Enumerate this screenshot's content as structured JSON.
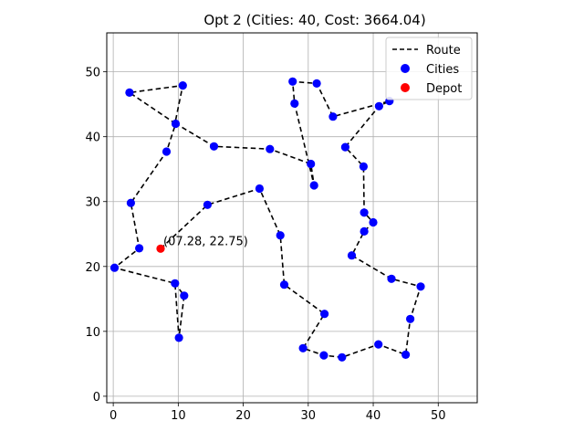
{
  "chart_data": {
    "type": "scatter",
    "title": "Opt 2 (Cities: 40, Cost: 3664.04)",
    "xlabel": "",
    "ylabel": "",
    "xlim": [
      -1,
      56
    ],
    "ylim": [
      -1,
      56
    ],
    "xticks": [
      0,
      10,
      20,
      30,
      40,
      50
    ],
    "yticks": [
      0,
      10,
      20,
      30,
      40,
      50
    ],
    "grid": true,
    "legend_position": "top-right",
    "legend": [
      {
        "label": "Route",
        "kind": "line",
        "color": "#000000"
      },
      {
        "label": "Cities",
        "kind": "marker",
        "color": "#0000ff"
      },
      {
        "label": "Depot",
        "kind": "marker",
        "color": "#ff0000"
      }
    ],
    "depot": {
      "x": 7.28,
      "y": 22.75,
      "label": "(07.28, 22.75)"
    },
    "route": [
      [
        7.28,
        22.75
      ],
      [
        14.5,
        29.5
      ],
      [
        22.5,
        32.0
      ],
      [
        25.7,
        24.8
      ],
      [
        26.3,
        17.2
      ],
      [
        32.5,
        12.7
      ],
      [
        29.2,
        7.4
      ],
      [
        32.4,
        6.3
      ],
      [
        35.2,
        6.0
      ],
      [
        40.8,
        8.0
      ],
      [
        45.0,
        6.4
      ],
      [
        45.7,
        11.9
      ],
      [
        47.3,
        16.9
      ],
      [
        42.8,
        18.1
      ],
      [
        36.7,
        21.7
      ],
      [
        38.6,
        25.4
      ],
      [
        40.0,
        26.8
      ],
      [
        38.6,
        28.3
      ],
      [
        38.5,
        35.4
      ],
      [
        35.7,
        38.4
      ],
      [
        40.9,
        44.7
      ],
      [
        42.5,
        45.5
      ],
      [
        33.8,
        43.1
      ],
      [
        31.3,
        48.2
      ],
      [
        27.6,
        48.5
      ],
      [
        27.9,
        45.1
      ],
      [
        30.9,
        32.5
      ],
      [
        30.4,
        35.8
      ],
      [
        24.1,
        38.1
      ],
      [
        15.5,
        38.5
      ],
      [
        9.5,
        42.1
      ],
      [
        10.7,
        47.9
      ],
      [
        2.5,
        46.8
      ],
      [
        9.6,
        42.0
      ],
      [
        8.2,
        37.7
      ],
      [
        2.7,
        29.8
      ],
      [
        4.0,
        22.8
      ],
      [
        0.2,
        19.8
      ],
      [
        9.5,
        17.4
      ],
      [
        10.1,
        9.0
      ],
      [
        10.9,
        15.5
      ],
      [
        9.5,
        17.4
      ]
    ],
    "cities": [
      [
        14.5,
        29.5
      ],
      [
        22.5,
        32.0
      ],
      [
        25.7,
        24.8
      ],
      [
        26.3,
        17.2
      ],
      [
        32.5,
        12.7
      ],
      [
        29.2,
        7.4
      ],
      [
        32.4,
        6.3
      ],
      [
        35.2,
        6.0
      ],
      [
        40.8,
        8.0
      ],
      [
        45.0,
        6.4
      ],
      [
        45.7,
        11.9
      ],
      [
        47.3,
        16.9
      ],
      [
        42.8,
        18.1
      ],
      [
        36.7,
        21.7
      ],
      [
        38.6,
        25.4
      ],
      [
        40.0,
        26.8
      ],
      [
        38.6,
        28.3
      ],
      [
        38.5,
        35.4
      ],
      [
        35.7,
        38.4
      ],
      [
        40.9,
        44.7
      ],
      [
        42.5,
        45.5
      ],
      [
        33.8,
        43.1
      ],
      [
        31.3,
        48.2
      ],
      [
        27.6,
        48.5
      ],
      [
        27.9,
        45.1
      ],
      [
        30.9,
        32.5
      ],
      [
        30.4,
        35.8
      ],
      [
        24.1,
        38.1
      ],
      [
        15.5,
        38.5
      ],
      [
        9.6,
        42.0
      ],
      [
        10.7,
        47.9
      ],
      [
        2.5,
        46.8
      ],
      [
        8.2,
        37.7
      ],
      [
        2.7,
        29.8
      ],
      [
        4.0,
        22.8
      ],
      [
        0.2,
        19.8
      ],
      [
        9.5,
        17.4
      ],
      [
        10.1,
        9.0
      ],
      [
        10.9,
        15.5
      ]
    ]
  }
}
